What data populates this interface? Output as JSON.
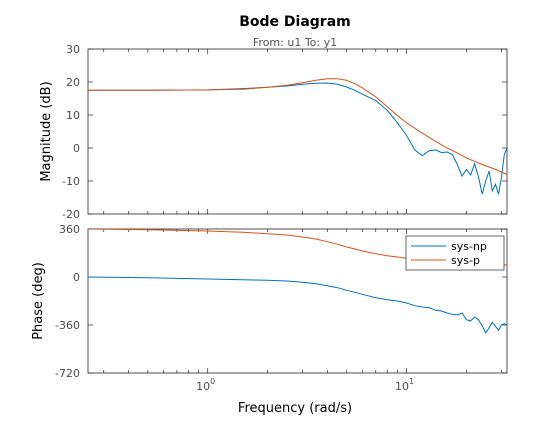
{
  "colors": {
    "series_np": "#0072bd",
    "series_p": "#d95319",
    "axes": "#262626",
    "tick_text": "#4d4d4d",
    "subtitle": "#555555"
  },
  "chart_data": {
    "type": "line",
    "title": "Bode Diagram",
    "subtitle": "From: u1  To: y1",
    "xlabel": "Frequency  (rad/s)",
    "xscale": "log",
    "xlim": [
      0.25,
      32
    ],
    "xticks": [
      {
        "value": 1,
        "base": "10",
        "exp": "0"
      },
      {
        "value": 10,
        "base": "10",
        "exp": "1"
      }
    ],
    "grid": false,
    "panels": [
      {
        "ylabel": "Magnitude (dB)",
        "ylim": [
          -20,
          30
        ],
        "yticks": [
          30,
          20,
          10,
          0,
          -10,
          -20
        ],
        "series": [
          {
            "name": "sys-np",
            "x": [
              0.25,
              0.5,
              1,
              1.5,
              2,
              2.5,
              3,
              3.5,
              4,
              4.5,
              5,
              5.5,
              6,
              7,
              8,
              9,
              10,
              11,
              12,
              13,
              14,
              15,
              16,
              17,
              18,
              19,
              20,
              21,
              22,
              23,
              24,
              25,
              26,
              27,
              28,
              29,
              30,
              31,
              32
            ],
            "y": [
              17.5,
              17.5,
              17.6,
              18,
              18.4,
              18.8,
              19.3,
              19.6,
              19.7,
              19.3,
              18.5,
              17.5,
              16.3,
              14.4,
              11.4,
              7.6,
              3.8,
              -0.6,
              -2.3,
              -0.8,
              -0.6,
              -1.4,
              -1.2,
              -2.0,
              -5.0,
              -8.5,
              -6.5,
              -8.2,
              -4.8,
              -8.8,
              -14,
              -10,
              -7,
              -13,
              -11,
              -14,
              -9,
              -2,
              0
            ]
          },
          {
            "name": "sys-p",
            "x": [
              0.25,
              0.5,
              1,
              1.5,
              2,
              2.5,
              3,
              3.5,
              4,
              4.5,
              5,
              5.5,
              6,
              7,
              8,
              9,
              10,
              12,
              14,
              16,
              18,
              20,
              24,
              28,
              32
            ],
            "y": [
              17.5,
              17.5,
              17.6,
              17.8,
              18.4,
              19,
              19.8,
              20.5,
              21,
              21,
              20.5,
              19.5,
              18.2,
              15.5,
              12.5,
              9.8,
              7.6,
              4.5,
              2,
              0,
              -1.5,
              -3,
              -5,
              -6.5,
              -8
            ]
          }
        ]
      },
      {
        "ylabel": "Phase (deg)",
        "ylim": [
          -720,
          360
        ],
        "yticks": [
          360,
          0,
          -360,
          -720
        ],
        "legend": {
          "position": "top-right",
          "entries": [
            "sys-np",
            "sys-p"
          ]
        },
        "series": [
          {
            "name": "sys-np",
            "x": [
              0.25,
              0.5,
              1,
              1.5,
              2,
              2.5,
              3,
              3.5,
              4,
              4.5,
              5,
              5.5,
              6,
              7,
              8,
              9,
              10,
              11,
              12,
              13,
              14,
              15,
              16,
              17,
              18,
              19,
              20,
              21,
              22,
              23,
              24,
              25,
              26,
              27,
              28,
              29,
              30,
              31,
              32
            ],
            "y": [
              0,
              -5,
              -15,
              -20,
              -25,
              -30,
              -40,
              -50,
              -65,
              -80,
              -100,
              -115,
              -130,
              -155,
              -170,
              -180,
              -195,
              -215,
              -225,
              -230,
              -250,
              -255,
              -270,
              -280,
              -285,
              -270,
              -320,
              -330,
              -300,
              -320,
              -365,
              -420,
              -380,
              -340,
              -370,
              -400,
              -360,
              -350,
              -360
            ]
          },
          {
            "name": "sys-p",
            "x": [
              0.25,
              0.5,
              1,
              1.5,
              2,
              2.5,
              3,
              3.5,
              4,
              4.5,
              5,
              5.5,
              6,
              7,
              8,
              9,
              10,
              12,
              14,
              16,
              18,
              20,
              24,
              28,
              32
            ],
            "y": [
              360,
              355,
              345,
              335,
              325,
              315,
              300,
              285,
              265,
              245,
              225,
              210,
              195,
              175,
              160,
              150,
              140,
              128,
              120,
              114,
              108,
              104,
              98,
              94,
              90
            ]
          }
        ]
      }
    ]
  }
}
